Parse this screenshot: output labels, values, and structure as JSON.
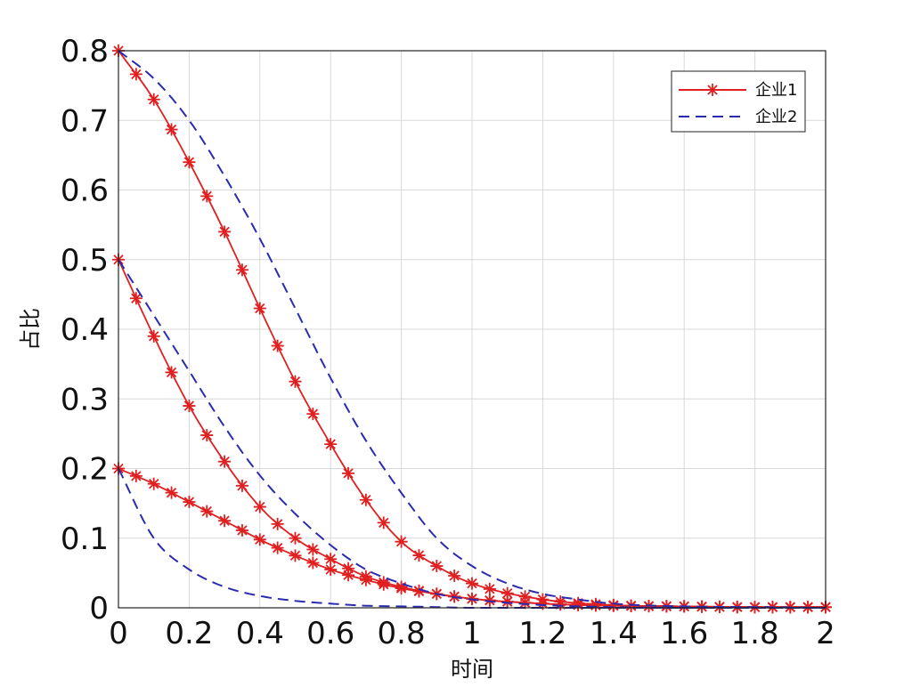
{
  "chart_data": {
    "type": "line",
    "xlabel": "时间",
    "ylabel": "占比",
    "xlim": [
      0,
      2
    ],
    "ylim": [
      0,
      0.8
    ],
    "x_ticks": [
      0,
      0.2,
      0.4,
      0.6,
      0.8,
      1,
      1.2,
      1.4,
      1.6,
      1.8,
      2
    ],
    "x_tick_labels": [
      "0",
      "0.2",
      "0.4",
      "0.6",
      "0.8",
      "1",
      "1.2",
      "1.4",
      "1.6",
      "1.8",
      "2"
    ],
    "y_ticks": [
      0,
      0.1,
      0.2,
      0.3,
      0.4,
      0.5,
      0.6,
      0.7,
      0.8
    ],
    "y_tick_labels": [
      "0",
      "0.1",
      "0.2",
      "0.3",
      "0.4",
      "0.5",
      "0.6",
      "0.7",
      "0.8"
    ],
    "grid": true,
    "legend_position": "top-right",
    "legend": [
      {
        "label": "企业1",
        "color": "#e02020",
        "style": "solid-star"
      },
      {
        "label": "企业2",
        "color": "#2b2bb0",
        "style": "dashed"
      }
    ],
    "series": [
      {
        "group": "企业1",
        "color": "#e02020",
        "x": [
          0,
          0.1,
          0.2,
          0.3,
          0.4,
          0.5,
          0.6,
          0.7,
          0.8,
          0.9,
          1.0,
          1.2,
          1.4,
          1.6,
          1.8,
          2.0
        ],
        "y": [
          0.8,
          0.73,
          0.64,
          0.54,
          0.43,
          0.325,
          0.235,
          0.155,
          0.095,
          0.06,
          0.035,
          0.012,
          0.004,
          0.002,
          0.001,
          0.001
        ]
      },
      {
        "group": "企业1",
        "color": "#e02020",
        "x": [
          0,
          0.1,
          0.2,
          0.3,
          0.4,
          0.5,
          0.6,
          0.7,
          0.8,
          0.9,
          1.0,
          1.2,
          1.4,
          1.6,
          1.8,
          2.0
        ],
        "y": [
          0.5,
          0.39,
          0.29,
          0.21,
          0.145,
          0.1,
          0.07,
          0.045,
          0.03,
          0.02,
          0.013,
          0.006,
          0.003,
          0.002,
          0.001,
          0.001
        ]
      },
      {
        "group": "企业1",
        "color": "#e02020",
        "x": [
          0,
          0.1,
          0.2,
          0.3,
          0.4,
          0.5,
          0.6,
          0.7,
          0.8,
          0.9,
          1.0,
          1.2,
          1.4,
          1.6,
          1.8,
          2.0
        ],
        "y": [
          0.2,
          0.178,
          0.152,
          0.125,
          0.098,
          0.075,
          0.055,
          0.04,
          0.028,
          0.02,
          0.013,
          0.006,
          0.003,
          0.002,
          0.001,
          0.001
        ]
      },
      {
        "group": "企业2",
        "color": "#2b2bb0",
        "x": [
          0,
          0.1,
          0.2,
          0.3,
          0.4,
          0.5,
          0.6,
          0.7,
          0.8,
          0.9,
          1.0,
          1.1,
          1.2,
          1.3,
          1.4,
          1.6,
          1.8,
          2.0
        ],
        "y": [
          0.8,
          0.76,
          0.7,
          0.62,
          0.53,
          0.43,
          0.33,
          0.24,
          0.165,
          0.1,
          0.06,
          0.035,
          0.02,
          0.012,
          0.006,
          0.002,
          0.001,
          0.0
        ]
      },
      {
        "group": "企业2",
        "color": "#2b2bb0",
        "x": [
          0,
          0.1,
          0.2,
          0.3,
          0.4,
          0.5,
          0.6,
          0.7,
          0.8,
          0.9,
          1.0,
          1.2,
          1.4,
          1.6,
          1.8,
          2.0
        ],
        "y": [
          0.5,
          0.42,
          0.34,
          0.26,
          0.19,
          0.135,
          0.09,
          0.055,
          0.035,
          0.02,
          0.012,
          0.004,
          0.001,
          0.0,
          0.0,
          0.0
        ]
      },
      {
        "group": "企业2",
        "color": "#2b2bb0",
        "x": [
          0,
          0.1,
          0.2,
          0.3,
          0.4,
          0.5,
          0.6,
          0.7,
          0.8,
          0.9,
          1.0,
          1.2,
          1.4,
          1.6,
          1.8,
          2.0
        ],
        "y": [
          0.2,
          0.1,
          0.055,
          0.03,
          0.017,
          0.01,
          0.006,
          0.003,
          0.002,
          0.001,
          0.0,
          0.0,
          0.0,
          0.0,
          0.0,
          0.0
        ]
      }
    ]
  }
}
